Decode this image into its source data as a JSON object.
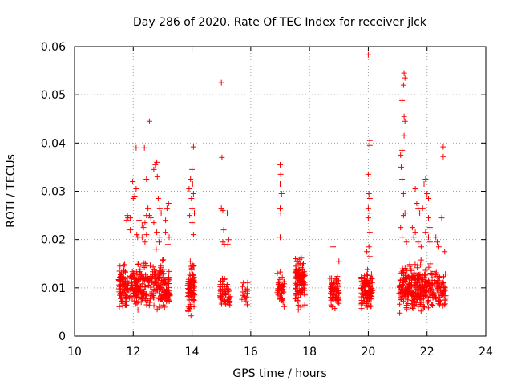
{
  "chart_data": {
    "type": "scatter",
    "title": "Day 286 of 2020, Rate Of TEC Index for receiver jlck",
    "xlabel": "GPS time / hours",
    "ylabel": "ROTI / TECUs",
    "xlim": [
      10,
      24
    ],
    "ylim": [
      0,
      0.06
    ],
    "xticks": [
      10,
      12,
      14,
      16,
      18,
      20,
      22,
      24
    ],
    "yticks": [
      0,
      0.01,
      0.02,
      0.03,
      0.04,
      0.05,
      0.06
    ],
    "xtick_labels": [
      "10",
      "12",
      "14",
      "16",
      "18",
      "20",
      "22",
      "24"
    ],
    "ytick_labels": [
      "0",
      "0.01",
      "0.02",
      "0.03",
      "0.04",
      "0.05",
      "0.06"
    ],
    "grid": true,
    "marker": "+",
    "color": "#ff0000",
    "clusters": [
      {
        "x_range": [
          11.5,
          11.75
        ],
        "base": [
          0.004,
          0.016
        ],
        "n": 70,
        "extra": [
          [
            11.55,
            0.0145
          ],
          [
            11.6,
            0.0125
          ]
        ]
      },
      {
        "x_range": [
          11.75,
          12.15
        ],
        "base": [
          0.004,
          0.016
        ],
        "n": 80,
        "extra": [
          [
            11.78,
            0.024
          ],
          [
            11.8,
            0.025
          ],
          [
            11.82,
            0.0245
          ],
          [
            11.9,
            0.022
          ],
          [
            11.9,
            0.0245
          ],
          [
            11.98,
            0.032
          ],
          [
            12.0,
            0.0285
          ],
          [
            12.05,
            0.029
          ],
          [
            12.1,
            0.0305
          ],
          [
            12.1,
            0.039
          ],
          [
            12.12,
            0.021
          ],
          [
            12.15,
            0.0205
          ]
        ]
      },
      {
        "x_range": [
          12.15,
          12.6
        ],
        "base": [
          0.004,
          0.017
        ],
        "n": 90,
        "extra": [
          [
            12.2,
            0.024
          ],
          [
            12.3,
            0.023
          ],
          [
            12.35,
            0.0225
          ],
          [
            12.4,
            0.0235
          ],
          [
            12.45,
            0.025
          ],
          [
            12.5,
            0.0265
          ],
          [
            12.55,
            0.025
          ],
          [
            12.6,
            0.0245
          ],
          [
            12.38,
            0.039
          ],
          [
            12.45,
            0.0325
          ],
          [
            12.55,
            0.0445
          ],
          [
            12.3,
            0.0205
          ],
          [
            12.4,
            0.0195
          ],
          [
            12.45,
            0.021
          ]
        ]
      },
      {
        "x_range": [
          12.6,
          13.05
        ],
        "base": [
          0.004,
          0.017
        ],
        "n": 90,
        "extra": [
          [
            12.7,
            0.0345
          ],
          [
            12.75,
            0.0355
          ],
          [
            12.8,
            0.036
          ],
          [
            12.82,
            0.033
          ],
          [
            12.85,
            0.0285
          ],
          [
            12.9,
            0.0265
          ],
          [
            12.95,
            0.0255
          ],
          [
            12.7,
            0.0235
          ],
          [
            12.8,
            0.0215
          ],
          [
            12.88,
            0.0195
          ],
          [
            12.78,
            0.018
          ],
          [
            12.9,
            0.0205
          ]
        ]
      },
      {
        "x_range": [
          13.05,
          13.25
        ],
        "base": [
          0.004,
          0.016
        ],
        "n": 45,
        "extra": [
          [
            13.1,
            0.024
          ],
          [
            13.15,
            0.0265
          ],
          [
            13.2,
            0.0275
          ],
          [
            13.1,
            0.0215
          ],
          [
            13.18,
            0.019
          ],
          [
            13.22,
            0.0205
          ]
        ]
      },
      {
        "x_range": [
          13.85,
          14.1
        ],
        "base": [
          0.003,
          0.017
        ],
        "n": 85,
        "extra": [
          [
            13.9,
            0.0305
          ],
          [
            13.95,
            0.0325
          ],
          [
            14.0,
            0.0345
          ],
          [
            14.05,
            0.0295
          ],
          [
            14.08,
            0.0255
          ],
          [
            14.0,
            0.0265
          ],
          [
            13.92,
            0.025
          ],
          [
            14.0,
            0.0235
          ],
          [
            14.05,
            0.021
          ],
          [
            14.05,
            0.0392
          ],
          [
            13.98,
            0.0285
          ],
          [
            14.02,
            0.0315
          ]
        ]
      },
      {
        "x_range": [
          14.95,
          15.12
        ],
        "base": [
          0.005,
          0.014
        ],
        "n": 35,
        "extra": [
          [
            15.0,
            0.0525
          ],
          [
            15.02,
            0.037
          ],
          [
            15.0,
            0.0265
          ],
          [
            15.05,
            0.026
          ],
          [
            15.08,
            0.022
          ],
          [
            15.05,
            0.0195
          ],
          [
            15.1,
            0.019
          ]
        ]
      },
      {
        "x_range": [
          15.12,
          15.3
        ],
        "base": [
          0.004,
          0.013
        ],
        "n": 25,
        "extra": [
          [
            15.2,
            0.0255
          ],
          [
            15.22,
            0.019
          ],
          [
            15.25,
            0.02
          ]
        ]
      },
      {
        "x_range": [
          15.7,
          15.9
        ],
        "base": [
          0.005,
          0.014
        ],
        "n": 15,
        "extra": []
      },
      {
        "x_range": [
          16.9,
          17.15
        ],
        "base": [
          0.005,
          0.014
        ],
        "n": 45,
        "extra": [
          [
            17.0,
            0.0355
          ],
          [
            17.02,
            0.0335
          ],
          [
            17.0,
            0.0315
          ],
          [
            17.05,
            0.0295
          ],
          [
            17.0,
            0.0265
          ],
          [
            17.02,
            0.0255
          ],
          [
            17.0,
            0.0205
          ]
        ]
      },
      {
        "x_range": [
          17.5,
          17.85
        ],
        "base": [
          0.004,
          0.018
        ],
        "n": 110,
        "extra": []
      },
      {
        "x_range": [
          18.7,
          19.0
        ],
        "base": [
          0.005,
          0.014
        ],
        "n": 70,
        "extra": [
          [
            18.8,
            0.0185
          ],
          [
            19.0,
            0.0155
          ]
        ]
      },
      {
        "x_range": [
          19.75,
          20.15
        ],
        "base": [
          0.004,
          0.015
        ],
        "n": 110,
        "extra": [
          [
            20.0,
            0.0583
          ],
          [
            20.05,
            0.0405
          ],
          [
            20.05,
            0.0395
          ],
          [
            20.0,
            0.0335
          ],
          [
            20.02,
            0.0295
          ],
          [
            20.05,
            0.0285
          ],
          [
            20.0,
            0.0265
          ],
          [
            20.05,
            0.0255
          ],
          [
            20.0,
            0.0245
          ],
          [
            20.05,
            0.0215
          ],
          [
            20.02,
            0.0185
          ],
          [
            19.95,
            0.0175
          ],
          [
            20.05,
            0.0165
          ]
        ]
      },
      {
        "x_range": [
          21.05,
          21.4
        ],
        "base": [
          0.004,
          0.016
        ],
        "n": 90,
        "extra": [
          [
            21.22,
            0.0545
          ],
          [
            21.25,
            0.0535
          ],
          [
            21.2,
            0.052
          ],
          [
            21.15,
            0.0488
          ],
          [
            21.22,
            0.0455
          ],
          [
            21.25,
            0.0445
          ],
          [
            21.22,
            0.0415
          ],
          [
            21.15,
            0.0385
          ],
          [
            21.1,
            0.0375
          ],
          [
            21.12,
            0.035
          ],
          [
            21.15,
            0.0325
          ],
          [
            21.2,
            0.0295
          ],
          [
            21.2,
            0.025
          ],
          [
            21.25,
            0.0255
          ],
          [
            21.1,
            0.0225
          ],
          [
            21.15,
            0.0205
          ],
          [
            21.3,
            0.0195
          ]
        ]
      },
      {
        "x_range": [
          21.4,
          21.8
        ],
        "base": [
          0.004,
          0.017
        ],
        "n": 100,
        "extra": [
          [
            21.6,
            0.0305
          ],
          [
            21.65,
            0.0275
          ],
          [
            21.7,
            0.0265
          ],
          [
            21.75,
            0.0255
          ],
          [
            21.5,
            0.0225
          ],
          [
            21.6,
            0.0215
          ],
          [
            21.7,
            0.0195
          ],
          [
            21.55,
            0.0205
          ],
          [
            21.8,
            0.0185
          ]
        ]
      },
      {
        "x_range": [
          21.8,
          22.15
        ],
        "base": [
          0.004,
          0.016
        ],
        "n": 70,
        "extra": [
          [
            21.9,
            0.0315
          ],
          [
            21.95,
            0.0325
          ],
          [
            22.0,
            0.0295
          ],
          [
            22.05,
            0.0285
          ],
          [
            21.85,
            0.0265
          ],
          [
            22.05,
            0.0245
          ],
          [
            22.1,
            0.0225
          ],
          [
            22.05,
            0.0205
          ],
          [
            22.1,
            0.0195
          ],
          [
            21.95,
            0.0215
          ]
        ]
      },
      {
        "x_range": [
          22.15,
          22.65
        ],
        "base": [
          0.003,
          0.016
        ],
        "n": 80,
        "extra": [
          [
            22.55,
            0.0392
          ],
          [
            22.55,
            0.0372
          ],
          [
            22.5,
            0.0245
          ],
          [
            22.4,
            0.0185
          ],
          [
            22.35,
            0.0195
          ],
          [
            22.6,
            0.0175
          ],
          [
            22.3,
            0.0205
          ]
        ]
      }
    ]
  }
}
